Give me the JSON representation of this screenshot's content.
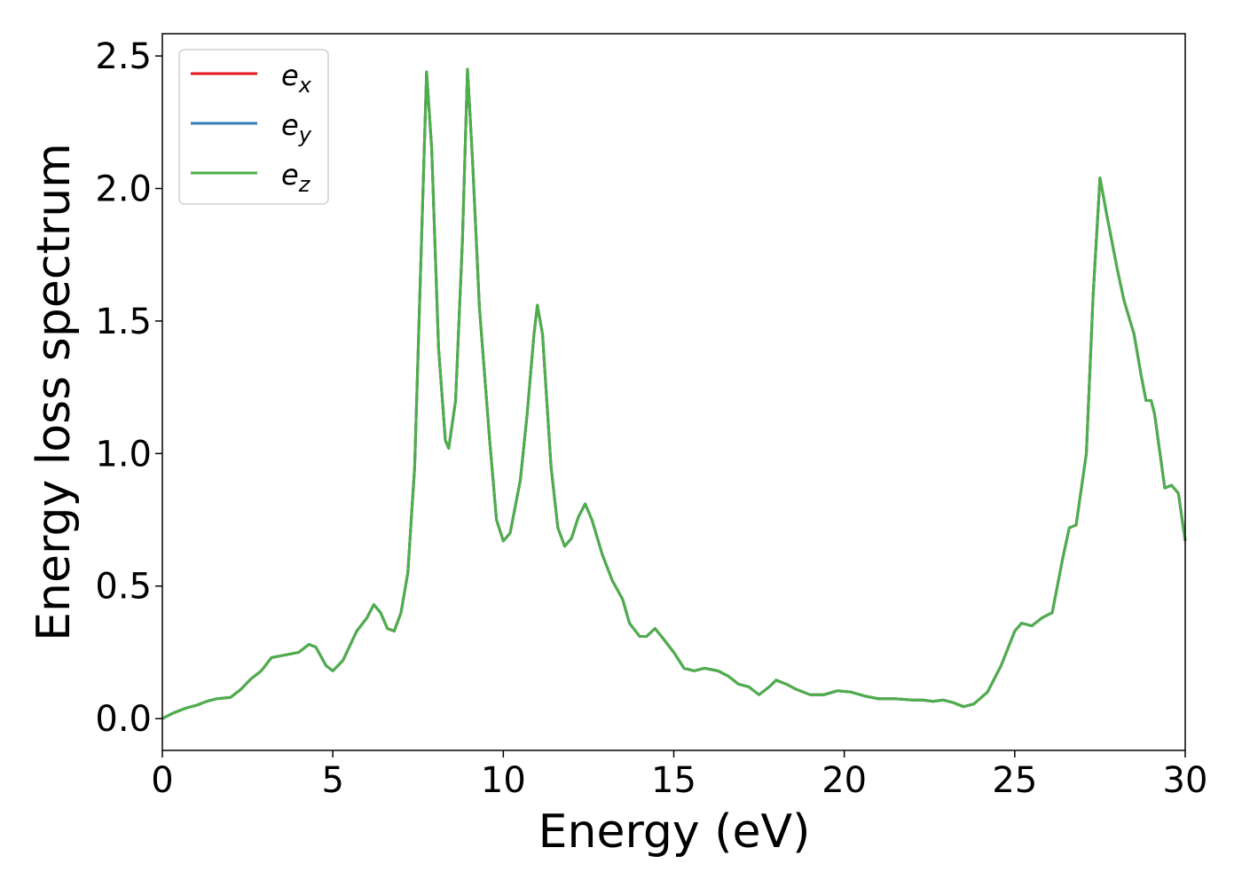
{
  "chart_data": {
    "type": "line",
    "xlabel": "Energy (eV)",
    "ylabel": "Energy loss spectrum",
    "xlim": [
      0,
      30
    ],
    "ylim": [
      -0.12,
      2.584
    ],
    "xticks": [
      0,
      5,
      10,
      15,
      20,
      25,
      30
    ],
    "yticks": [
      {
        "value": 0,
        "label": "0.0"
      },
      0.5,
      {
        "value": 1,
        "label": "1.0"
      },
      1.5,
      {
        "value": 2,
        "label": "2.0"
      },
      2.5
    ],
    "legend": "upper left",
    "x": [
      0,
      0.3,
      0.7,
      1.0,
      1.3,
      1.6,
      2.0,
      2.3,
      2.6,
      2.9,
      3.2,
      3.6,
      4.0,
      4.3,
      4.5,
      4.8,
      5.0,
      5.3,
      5.7,
      6.0,
      6.2,
      6.4,
      6.6,
      6.8,
      7.0,
      7.2,
      7.4,
      7.6,
      7.75,
      7.9,
      8.1,
      8.3,
      8.4,
      8.6,
      8.8,
      8.95,
      9.1,
      9.3,
      9.6,
      9.8,
      10.0,
      10.2,
      10.5,
      10.7,
      10.9,
      11.0,
      11.15,
      11.4,
      11.6,
      11.8,
      12.0,
      12.2,
      12.4,
      12.6,
      12.9,
      13.2,
      13.5,
      13.7,
      14.0,
      14.2,
      14.45,
      14.7,
      15.0,
      15.3,
      15.6,
      15.9,
      16.3,
      16.6,
      16.9,
      17.2,
      17.5,
      17.8,
      18.0,
      18.3,
      18.6,
      19.0,
      19.4,
      19.8,
      20.2,
      20.6,
      21.0,
      21.5,
      22.0,
      22.3,
      22.6,
      22.9,
      23.2,
      23.5,
      23.8,
      24.2,
      24.6,
      25.0,
      25.2,
      25.5,
      25.8,
      26.1,
      26.4,
      26.6,
      26.8,
      27.1,
      27.3,
      27.5,
      27.7,
      28.0,
      28.2,
      28.5,
      28.7,
      28.85,
      29.0,
      29.1,
      29.4,
      29.6,
      29.8,
      30.0
    ],
    "series": [
      {
        "name": "ex",
        "color": "#e41a1c",
        "values": [
          0,
          0.02,
          0.04,
          0.05,
          0.065,
          0.075,
          0.08,
          0.11,
          0.15,
          0.18,
          0.23,
          0.24,
          0.25,
          0.28,
          0.27,
          0.2,
          0.18,
          0.22,
          0.33,
          0.38,
          0.43,
          0.4,
          0.34,
          0.33,
          0.4,
          0.55,
          0.95,
          1.8,
          2.44,
          2.15,
          1.4,
          1.05,
          1.02,
          1.2,
          1.8,
          2.45,
          2.1,
          1.55,
          1.05,
          0.75,
          0.67,
          0.7,
          0.9,
          1.15,
          1.45,
          1.56,
          1.45,
          0.95,
          0.72,
          0.65,
          0.68,
          0.76,
          0.81,
          0.75,
          0.62,
          0.52,
          0.45,
          0.36,
          0.31,
          0.31,
          0.34,
          0.3,
          0.25,
          0.19,
          0.18,
          0.19,
          0.18,
          0.16,
          0.13,
          0.12,
          0.09,
          0.12,
          0.145,
          0.13,
          0.11,
          0.09,
          0.09,
          0.105,
          0.1,
          0.085,
          0.075,
          0.075,
          0.07,
          0.07,
          0.065,
          0.07,
          0.06,
          0.045,
          0.055,
          0.1,
          0.2,
          0.33,
          0.36,
          0.35,
          0.38,
          0.4,
          0.6,
          0.72,
          0.73,
          1.0,
          1.6,
          2.04,
          1.9,
          1.7,
          1.58,
          1.45,
          1.3,
          1.2,
          1.2,
          1.15,
          0.87,
          0.88,
          0.85,
          0.67
        ]
      },
      {
        "name": "ey",
        "color": "#377eb8",
        "values": [
          0,
          0.02,
          0.04,
          0.05,
          0.065,
          0.075,
          0.08,
          0.11,
          0.15,
          0.18,
          0.23,
          0.24,
          0.25,
          0.28,
          0.27,
          0.2,
          0.18,
          0.22,
          0.33,
          0.38,
          0.43,
          0.4,
          0.34,
          0.33,
          0.4,
          0.55,
          0.95,
          1.8,
          2.44,
          2.15,
          1.4,
          1.05,
          1.02,
          1.2,
          1.8,
          2.45,
          2.1,
          1.55,
          1.05,
          0.75,
          0.67,
          0.7,
          0.9,
          1.15,
          1.45,
          1.56,
          1.45,
          0.95,
          0.72,
          0.65,
          0.68,
          0.76,
          0.81,
          0.75,
          0.62,
          0.52,
          0.45,
          0.36,
          0.31,
          0.31,
          0.34,
          0.3,
          0.25,
          0.19,
          0.18,
          0.19,
          0.18,
          0.16,
          0.13,
          0.12,
          0.09,
          0.12,
          0.145,
          0.13,
          0.11,
          0.09,
          0.09,
          0.105,
          0.1,
          0.085,
          0.075,
          0.075,
          0.07,
          0.07,
          0.065,
          0.07,
          0.06,
          0.045,
          0.055,
          0.1,
          0.2,
          0.33,
          0.36,
          0.35,
          0.38,
          0.4,
          0.6,
          0.72,
          0.73,
          1.0,
          1.6,
          2.04,
          1.9,
          1.7,
          1.58,
          1.45,
          1.3,
          1.2,
          1.2,
          1.15,
          0.87,
          0.88,
          0.85,
          0.67
        ]
      },
      {
        "name": "ez",
        "color": "#4daf4a",
        "values": [
          0,
          0.02,
          0.04,
          0.05,
          0.065,
          0.075,
          0.08,
          0.11,
          0.15,
          0.18,
          0.23,
          0.24,
          0.25,
          0.28,
          0.27,
          0.2,
          0.18,
          0.22,
          0.33,
          0.38,
          0.43,
          0.4,
          0.34,
          0.33,
          0.4,
          0.55,
          0.95,
          1.8,
          2.44,
          2.15,
          1.4,
          1.05,
          1.02,
          1.2,
          1.8,
          2.45,
          2.1,
          1.55,
          1.05,
          0.75,
          0.67,
          0.7,
          0.9,
          1.15,
          1.45,
          1.56,
          1.45,
          0.95,
          0.72,
          0.65,
          0.68,
          0.76,
          0.81,
          0.75,
          0.62,
          0.52,
          0.45,
          0.36,
          0.31,
          0.31,
          0.34,
          0.3,
          0.25,
          0.19,
          0.18,
          0.19,
          0.18,
          0.16,
          0.13,
          0.12,
          0.09,
          0.12,
          0.145,
          0.13,
          0.11,
          0.09,
          0.09,
          0.105,
          0.1,
          0.085,
          0.075,
          0.075,
          0.07,
          0.07,
          0.065,
          0.07,
          0.06,
          0.045,
          0.055,
          0.1,
          0.2,
          0.33,
          0.36,
          0.35,
          0.38,
          0.4,
          0.6,
          0.72,
          0.73,
          1.0,
          1.6,
          2.04,
          1.9,
          1.7,
          1.58,
          1.45,
          1.3,
          1.2,
          1.2,
          1.15,
          0.87,
          0.88,
          0.85,
          0.67
        ]
      }
    ]
  }
}
